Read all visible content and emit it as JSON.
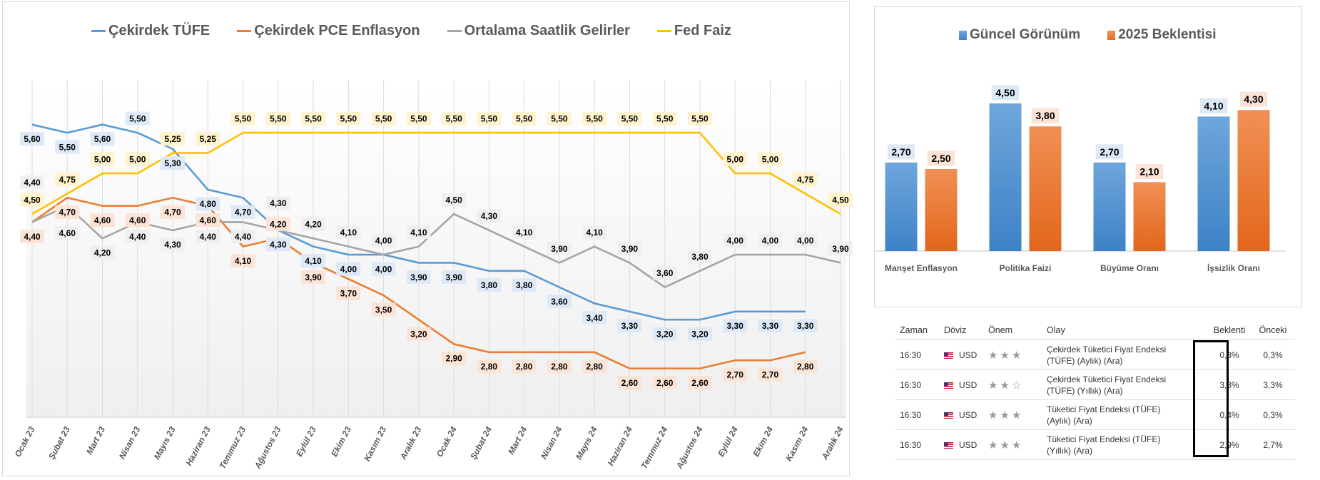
{
  "chart_data": [
    {
      "type": "line",
      "title": "",
      "xlabel": "",
      "ylabel": "",
      "ylim": [
        2.0,
        6.15
      ],
      "grid": "vertical",
      "legend": "top",
      "categories": [
        "Ocak 23",
        "Şubat 23",
        "Mart 23",
        "Nisan 23",
        "Mayıs 23",
        "Haziran 23",
        "Temmuz 23",
        "Ağustos 23",
        "Eylül 23",
        "Ekim 23",
        "Kasım 23",
        "Aralık 23",
        "Ocak 24",
        "Şubat 24",
        "Mart 24",
        "Nisan 24",
        "Mayıs 24",
        "Haziran 24",
        "Temmuz 24",
        "Ağustos 24",
        "Eylül 24",
        "Ekim 24",
        "Kasım 24",
        "Aralık 24"
      ],
      "series": [
        {
          "name": "Çekirdek TÜFE",
          "color": "#5b9bd5",
          "label_bg": "#dde9f6",
          "values": [
            5.6,
            5.5,
            5.6,
            5.5,
            5.3,
            4.8,
            4.7,
            4.3,
            4.1,
            4.0,
            4.0,
            3.9,
            3.9,
            3.8,
            3.8,
            3.6,
            3.4,
            3.3,
            3.2,
            3.2,
            3.3,
            3.3,
            3.3,
            null
          ]
        },
        {
          "name": "Çekirdek PCE Enflasyon",
          "color": "#ed7d31",
          "label_bg": "#fbe3d5",
          "values": [
            4.4,
            4.7,
            4.6,
            4.6,
            4.7,
            4.6,
            4.1,
            4.2,
            3.9,
            3.7,
            3.5,
            3.2,
            2.9,
            2.8,
            2.8,
            2.8,
            2.8,
            2.6,
            2.6,
            2.6,
            2.7,
            2.7,
            2.8,
            null
          ]
        },
        {
          "name": "Ortalama Saatlik Gelirler",
          "color": "#a5a5a5",
          "label_bg": "#efefef",
          "values": [
            4.4,
            4.6,
            4.2,
            4.4,
            4.3,
            4.4,
            4.4,
            4.3,
            4.2,
            4.1,
            4.0,
            4.1,
            4.5,
            4.3,
            4.1,
            3.9,
            4.1,
            3.9,
            3.6,
            3.8,
            4.0,
            4.0,
            4.0,
            3.9
          ]
        },
        {
          "name": "Fed Faiz",
          "color": "#ffc000",
          "label_bg": "#fff2cc",
          "values": [
            4.5,
            4.75,
            5.0,
            5.0,
            5.25,
            5.25,
            5.5,
            5.5,
            5.5,
            5.5,
            5.5,
            5.5,
            5.5,
            5.5,
            5.5,
            5.5,
            5.5,
            5.5,
            5.5,
            5.5,
            5.0,
            5.0,
            4.75,
            4.5
          ]
        }
      ]
    },
    {
      "type": "bar",
      "title": "",
      "legend": "top",
      "ylim": [
        0,
        5
      ],
      "categories": [
        "Manşet Enflasyon",
        "Politika Faizi",
        "Büyüme Oranı",
        "İşsizlik Oranı"
      ],
      "series": [
        {
          "name": "Güncel Görünüm",
          "color": "#5b9bd5",
          "label_bg": "#dde9f6",
          "values": [
            2.7,
            4.5,
            2.7,
            4.1
          ]
        },
        {
          "name": "2025 Beklentisi",
          "color": "#ed7d31",
          "label_bg": "#fbe3d5",
          "values": [
            2.5,
            3.8,
            2.1,
            4.3
          ]
        }
      ]
    }
  ],
  "table": {
    "headers": {
      "time": "Zaman",
      "currency": "Döviz",
      "importance": "Önem",
      "event": "Olay",
      "forecast": "Beklenti",
      "previous": "Önceki"
    },
    "rows": [
      {
        "time": "16:30",
        "currency": "USD",
        "stars": "★★★",
        "importance": 3,
        "event_line1": "Çekirdek Tüketici Fiyat Endeksi",
        "event_line2": "(TÜFE) (Aylık) (Ara)",
        "forecast": "0,3%",
        "previous": "0,3%"
      },
      {
        "time": "16:30",
        "currency": "USD",
        "stars": "★★☆",
        "importance": 2,
        "event_line1": "Çekirdek Tüketici Fiyat Endeksi",
        "event_line2": "(TÜFE) (Yıllık) (Ara)",
        "forecast": "3,3%",
        "previous": "3,3%"
      },
      {
        "time": "16:30",
        "currency": "USD",
        "stars": "★★★",
        "importance": 3,
        "event_line1": "Tüketici Fiyat Endeksi (TÜFE)",
        "event_line2": "(Aylık) (Ara)",
        "forecast": "0,4%",
        "previous": "0,3%"
      },
      {
        "time": "16:30",
        "currency": "USD",
        "stars": "★★★",
        "importance": 3,
        "event_line1": "Tüketici Fiyat Endeksi (TÜFE)",
        "event_line2": "(Yıllık) (Ara)",
        "forecast": "2,9%",
        "previous": "2,7%"
      }
    ]
  }
}
